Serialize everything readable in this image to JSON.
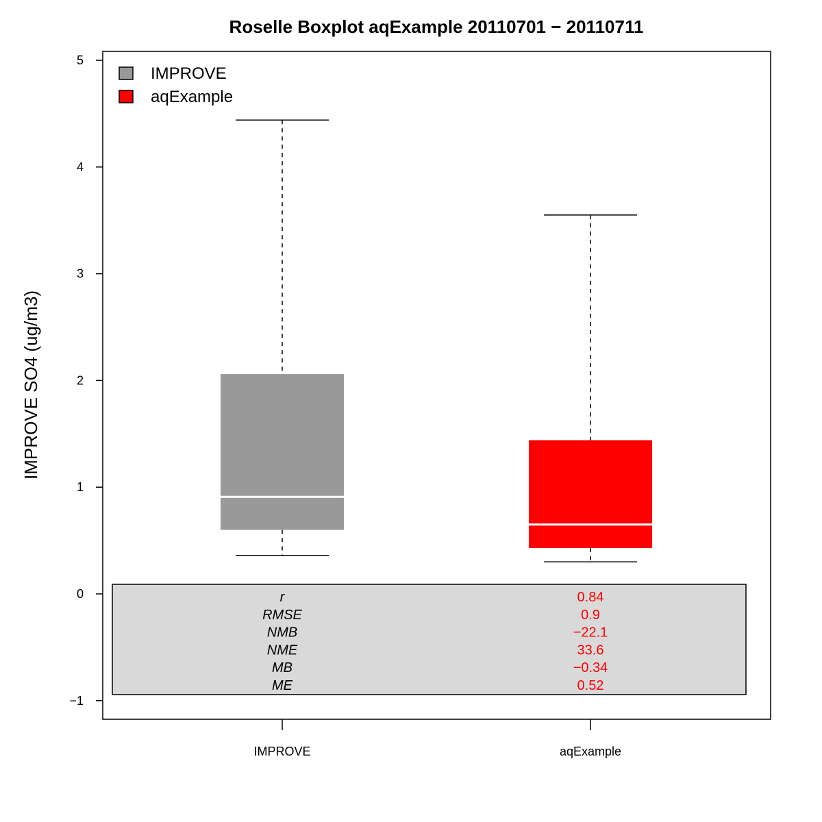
{
  "chart_data": {
    "type": "boxplot",
    "title": "Roselle Boxplot aqExample 20110701 − 20110711",
    "ylabel": "IMPROVE SO4 (ug/m3)",
    "ylim": [
      -1.3,
      5.1
    ],
    "y_ticks": [
      "5",
      "4",
      "3",
      "2",
      "1",
      "0",
      "−1"
    ],
    "y_tick_values": [
      5,
      4,
      3,
      2,
      1,
      0,
      -1
    ],
    "categories": [
      "IMPROVE",
      "aqExample"
    ],
    "legend_position": "top-left",
    "series": [
      {
        "name": "IMPROVE",
        "color": "#999999",
        "whisker_low": 0.36,
        "q1": 0.6,
        "median": 0.91,
        "q3": 2.06,
        "whisker_high": 4.44
      },
      {
        "name": "aqExample",
        "color": "#ff0000",
        "whisker_low": 0.3,
        "q1": 0.43,
        "median": 0.65,
        "q3": 1.44,
        "whisker_high": 3.55
      }
    ],
    "stats": {
      "names": [
        "r",
        "RMSE",
        "NMB",
        "NME",
        "MB",
        "ME"
      ],
      "values": [
        "0.84",
        "0.9",
        "−22.1",
        "33.6",
        "−0.34",
        "0.52"
      ],
      "value_color": "#ff0000",
      "table_fill": "#d9d9d9"
    }
  }
}
